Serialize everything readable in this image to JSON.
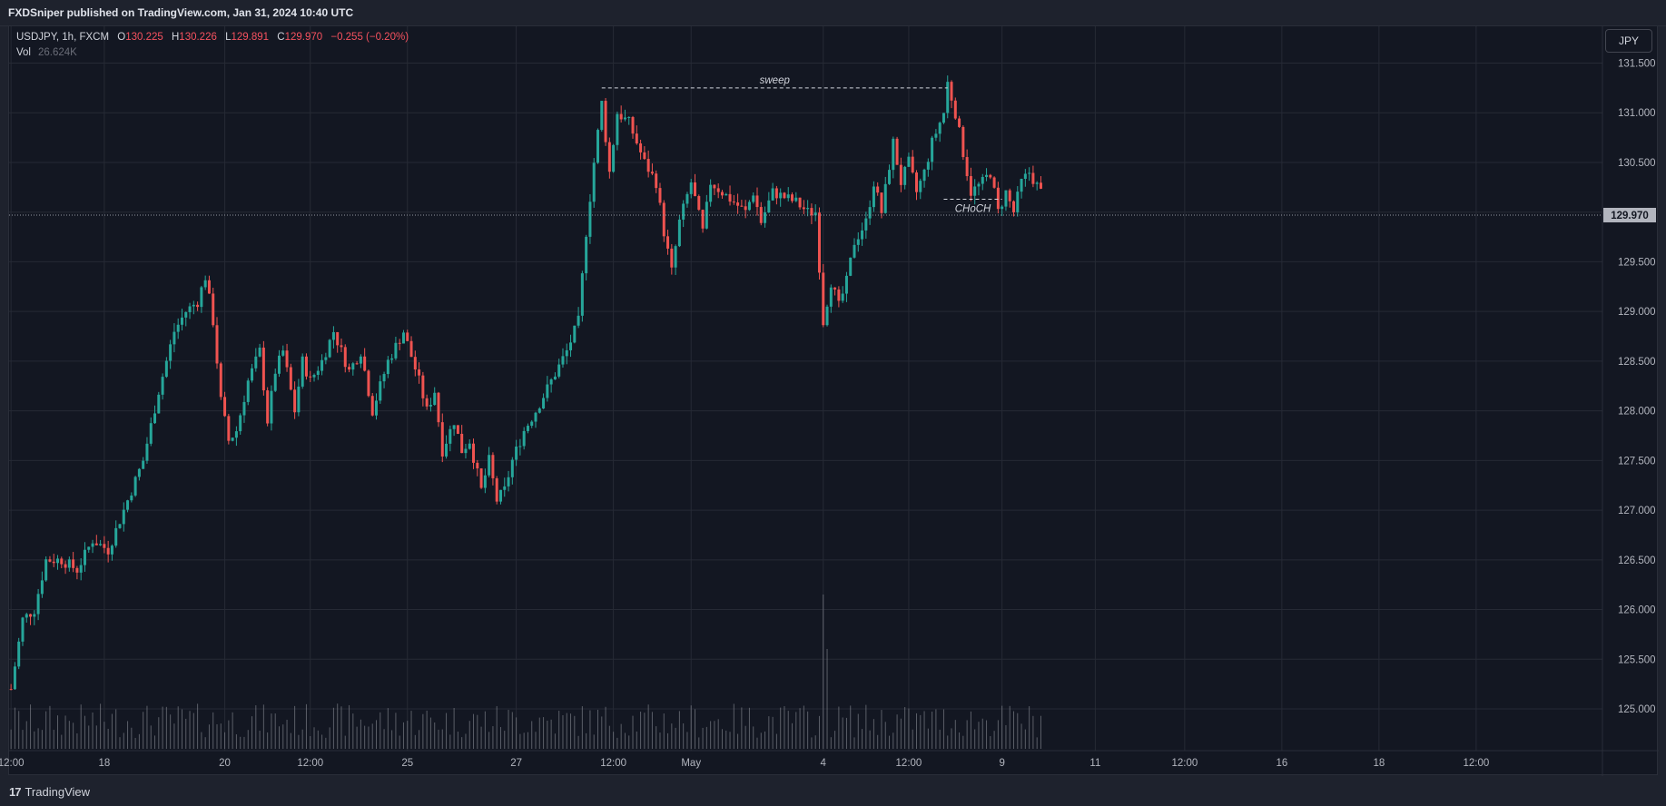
{
  "header": {
    "published": "FXDSniper published on TradingView.com, Jan 31, 2024 10:40 UTC"
  },
  "legend": {
    "symbol": "USDJPY, 1h, FXCM",
    "open_label": "O",
    "open": "130.225",
    "high_label": "H",
    "high": "130.226",
    "low_label": "L",
    "low": "129.891",
    "close_label": "C",
    "close": "129.970",
    "change": "−0.255 (−0.20%)",
    "vol_label": "Vol",
    "vol": "26.624K"
  },
  "currency": "JPY",
  "footer": {
    "brand": "TradingView",
    "logo": "17"
  },
  "colors": {
    "up": "#26a69a",
    "down": "#ef5350",
    "bg": "#131722",
    "grid": "#262a35",
    "axis_text": "#b2b5be",
    "volume": "#9598a1"
  },
  "chart_data": {
    "type": "candlestick",
    "symbol": "USDJPY",
    "timeframe": "1h",
    "y_axis": {
      "ticks": [
        "131.500",
        "131.000",
        "130.500",
        "130.000",
        "129.500",
        "129.000",
        "128.500",
        "128.000",
        "127.500",
        "127.000",
        "126.500",
        "126.000",
        "125.500",
        "125.000"
      ],
      "range": [
        124.58,
        131.87
      ]
    },
    "x_axis": {
      "ticks": [
        {
          "label": "12:00",
          "bar": 0
        },
        {
          "label": "18",
          "bar": 24
        },
        {
          "label": "20",
          "bar": 55
        },
        {
          "label": "12:00",
          "bar": 77
        },
        {
          "label": "25",
          "bar": 102
        },
        {
          "label": "27",
          "bar": 130
        },
        {
          "label": "12:00",
          "bar": 155
        },
        {
          "label": "May",
          "bar": 175
        },
        {
          "label": "4",
          "bar": 209
        },
        {
          "label": "12:00",
          "bar": 231
        },
        {
          "label": "9",
          "bar": 255
        },
        {
          "label": "11",
          "bar": 279
        },
        {
          "label": "12:00",
          "bar": 302
        },
        {
          "label": "16",
          "bar": 327
        },
        {
          "label": "18",
          "bar": 352
        },
        {
          "label": "12:00",
          "bar": 377
        }
      ],
      "total_slots": 410
    },
    "last_price": 129.97,
    "last_price_label": "129.970",
    "price_path": [
      [
        0,
        125.2
      ],
      [
        3,
        125.9
      ],
      [
        6,
        126.0
      ],
      [
        9,
        126.5
      ],
      [
        13,
        126.5
      ],
      [
        17,
        126.4
      ],
      [
        21,
        126.7
      ],
      [
        25,
        126.6
      ],
      [
        29,
        127.0
      ],
      [
        34,
        127.5
      ],
      [
        38,
        128.2
      ],
      [
        42,
        128.8
      ],
      [
        45,
        129.0
      ],
      [
        48,
        129.1
      ],
      [
        50,
        129.35
      ],
      [
        52,
        128.9
      ],
      [
        54,
        128.1
      ],
      [
        56,
        127.7
      ],
      [
        58,
        127.8
      ],
      [
        61,
        128.3
      ],
      [
        64,
        128.6
      ],
      [
        66,
        127.9
      ],
      [
        68,
        128.4
      ],
      [
        70,
        128.6
      ],
      [
        73,
        128.0
      ],
      [
        75,
        128.5
      ],
      [
        77,
        128.3
      ],
      [
        80,
        128.5
      ],
      [
        83,
        128.8
      ],
      [
        87,
        128.4
      ],
      [
        90,
        128.6
      ],
      [
        93,
        128.0
      ],
      [
        97,
        128.5
      ],
      [
        101,
        128.8
      ],
      [
        105,
        128.3
      ],
      [
        107,
        128.0
      ],
      [
        109,
        128.2
      ],
      [
        111,
        127.6
      ],
      [
        114,
        127.9
      ],
      [
        116,
        127.6
      ],
      [
        118,
        127.7
      ],
      [
        121,
        127.2
      ],
      [
        123,
        127.5
      ],
      [
        125,
        127.1
      ],
      [
        127,
        127.2
      ],
      [
        129,
        127.5
      ],
      [
        132,
        127.8
      ],
      [
        135,
        128.0
      ],
      [
        139,
        128.3
      ],
      [
        143,
        128.6
      ],
      [
        146,
        128.9
      ],
      [
        148,
        129.8
      ],
      [
        150,
        130.5
      ],
      [
        152,
        131.1
      ],
      [
        154,
        130.4
      ],
      [
        156,
        131.0
      ],
      [
        159,
        130.9
      ],
      [
        161,
        130.7
      ],
      [
        163,
        130.5
      ],
      [
        166,
        130.3
      ],
      [
        168,
        129.8
      ],
      [
        170,
        129.4
      ],
      [
        172,
        129.9
      ],
      [
        175,
        130.3
      ],
      [
        178,
        129.8
      ],
      [
        180,
        130.3
      ],
      [
        183,
        130.2
      ],
      [
        186,
        130.1
      ],
      [
        189,
        130.0
      ],
      [
        191,
        130.2
      ],
      [
        193,
        129.9
      ],
      [
        196,
        130.2
      ],
      [
        199,
        130.15
      ],
      [
        202,
        130.1
      ],
      [
        205,
        130.0
      ],
      [
        207,
        130.0
      ],
      [
        209,
        128.9
      ],
      [
        211,
        129.3
      ],
      [
        213,
        129.05
      ],
      [
        215,
        129.3
      ],
      [
        217,
        129.7
      ],
      [
        220,
        129.9
      ],
      [
        222,
        130.3
      ],
      [
        224,
        130.0
      ],
      [
        227,
        130.7
      ],
      [
        229,
        130.3
      ],
      [
        231,
        130.5
      ],
      [
        233,
        130.2
      ],
      [
        235,
        130.4
      ],
      [
        237,
        130.7
      ],
      [
        240,
        131.0
      ],
      [
        241,
        131.3
      ],
      [
        243,
        131.0
      ],
      [
        245,
        130.6
      ],
      [
        247,
        130.2
      ],
      [
        250,
        130.3
      ],
      [
        252,
        130.4
      ],
      [
        254,
        130.0
      ],
      [
        256,
        130.2
      ],
      [
        258,
        130.0
      ],
      [
        260,
        130.3
      ],
      [
        262,
        130.4
      ],
      [
        265,
        130.2
      ]
    ],
    "volume_spikes": [
      {
        "bar": 209,
        "value": 170
      },
      {
        "bar": 210,
        "value": 110
      }
    ],
    "annotations": [
      {
        "label": "sweep",
        "y": 131.25,
        "from_bar": 152,
        "to_bar": 241
      },
      {
        "label": "CHoCH",
        "y": 130.13,
        "from_bar": 240,
        "to_bar": 255
      }
    ]
  }
}
